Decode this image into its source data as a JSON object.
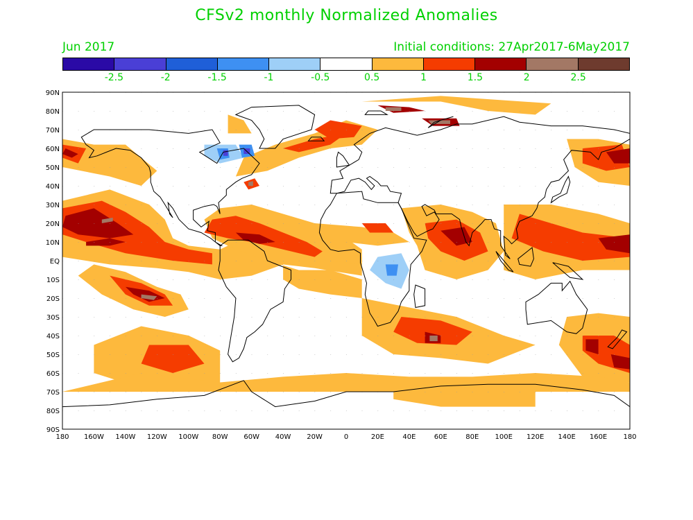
{
  "title": "CFSv2 monthly Normalized Anomalies",
  "month_label": "Jun 2017",
  "initial_conditions": "Initial conditions: 27Apr2017-6May2017",
  "colorbar": {
    "colors": [
      "#2a0aa6",
      "#4a3fd6",
      "#1f5fd8",
      "#3e90f2",
      "#9ecff7",
      "#ffffff",
      "#fdb93d",
      "#f53c00",
      "#a30000",
      "#a37865",
      "#6e3b2e"
    ],
    "labels": [
      "-2.5",
      "-2",
      "-1.5",
      "-1",
      "-0.5",
      "0.5",
      "1",
      "1.5",
      "2",
      "2.5"
    ]
  },
  "axes": {
    "lat_labels": [
      "90N",
      "80N",
      "70N",
      "60N",
      "50N",
      "40N",
      "30N",
      "20N",
      "10N",
      "EQ",
      "10S",
      "20S",
      "30S",
      "40S",
      "50S",
      "60S",
      "70S",
      "80S",
      "90S"
    ],
    "lon_labels": [
      "180",
      "160W",
      "140W",
      "120W",
      "100W",
      "80W",
      "60W",
      "40W",
      "20W",
      "0",
      "20E",
      "40E",
      "60E",
      "80E",
      "100E",
      "120E",
      "140E",
      "160E",
      "180"
    ]
  }
}
